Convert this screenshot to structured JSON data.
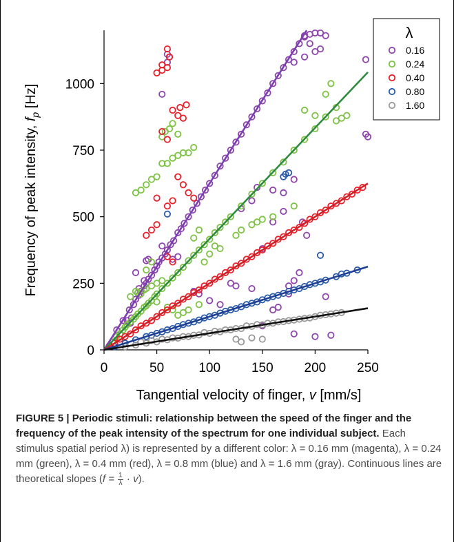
{
  "chart_data": {
    "type": "scatter",
    "xlabel": "Tangential velocity of finger, v [mm/s]",
    "xlabel_main": "Tangential velocity of finger, ",
    "xlabel_var": "v",
    "xlabel_unit": " [mm/s]",
    "ylabel_main": "Frequency of peak intensity, ",
    "ylabel_var": "f",
    "ylabel_sub": "p",
    "ylabel_unit": " [Hz]",
    "xlim": [
      0,
      250
    ],
    "ylim": [
      0,
      1200
    ],
    "xticks": [
      0,
      50,
      100,
      150,
      200,
      250
    ],
    "yticks": [
      0,
      250,
      500,
      750,
      1000
    ],
    "grid": false,
    "legend": {
      "title": "λ",
      "placement": "top-right"
    },
    "series": [
      {
        "name": "0.16",
        "color": "#8e44ad",
        "slope": 6.25,
        "line_color": "#7b3fb0",
        "x": [
          12,
          18,
          24,
          28,
          30,
          33,
          35,
          38,
          40,
          42,
          45,
          48,
          50,
          52,
          55,
          58,
          60,
          63,
          66,
          70,
          73,
          76,
          80,
          84,
          88,
          92,
          96,
          100,
          105,
          110,
          115,
          120,
          125,
          130,
          135,
          140,
          145,
          150,
          155,
          160,
          165,
          170,
          175,
          180,
          185,
          190,
          195,
          200,
          205,
          22,
          26,
          40,
          55,
          60,
          60,
          62,
          38,
          33,
          180,
          190,
          200,
          205,
          210,
          130,
          140,
          150,
          160,
          170,
          175,
          180,
          185,
          188,
          192,
          248,
          248,
          250,
          150,
          160,
          165,
          175,
          180,
          200,
          210,
          215,
          190,
          195,
          120,
          125,
          140,
          145,
          160,
          170,
          180,
          25,
          30,
          42,
          48,
          55,
          65,
          70,
          85,
          90,
          100,
          110
        ],
        "y": [
          75,
          110,
          150,
          170,
          190,
          205,
          220,
          240,
          250,
          265,
          280,
          300,
          315,
          330,
          345,
          360,
          375,
          395,
          410,
          440,
          455,
          475,
          500,
          525,
          550,
          575,
          600,
          625,
          655,
          690,
          720,
          750,
          780,
          810,
          845,
          875,
          905,
          935,
          965,
          1000,
          1030,
          1060,
          1090,
          1120,
          1150,
          1175,
          1185,
          1190,
          1190,
          110,
          120,
          335,
          960,
          1080,
          1110,
          1100,
          260,
          230,
          1080,
          1100,
          1120,
          1130,
          1180,
          530,
          560,
          380,
          480,
          520,
          240,
          260,
          290,
          480,
          430,
          810,
          1090,
          800,
          90,
          150,
          160,
          210,
          60,
          50,
          200,
          55,
          1180,
          1150,
          250,
          240,
          230,
          610,
          600,
          590,
          640,
          100,
          290,
          340,
          300,
          390,
          340,
          350,
          220,
          210,
          185,
          170
        ]
      },
      {
        "name": "0.24",
        "color": "#7dc242",
        "slope": 4.17,
        "line_color": "#2e8b3d",
        "x": [
          8,
          12,
          15,
          18,
          20,
          22,
          25,
          28,
          30,
          32,
          35,
          38,
          40,
          42,
          45,
          48,
          50,
          55,
          60,
          65,
          70,
          75,
          80,
          85,
          90,
          95,
          100,
          105,
          110,
          115,
          120,
          130,
          140,
          150,
          160,
          170,
          180,
          190,
          200,
          210,
          220,
          25,
          30,
          32,
          35,
          38,
          40,
          45,
          50,
          55,
          30,
          35,
          40,
          45,
          50,
          55,
          60,
          65,
          70,
          75,
          80,
          85,
          95,
          100,
          105,
          110,
          125,
          130,
          140,
          145,
          150,
          160,
          180,
          190,
          200,
          210,
          215,
          220,
          225,
          230,
          55,
          58,
          62,
          65,
          70,
          85,
          90,
          40,
          45,
          50,
          60,
          65,
          70,
          75,
          80,
          90
        ],
        "y": [
          30,
          50,
          60,
          75,
          85,
          95,
          105,
          115,
          125,
          135,
          145,
          160,
          165,
          175,
          185,
          200,
          210,
          230,
          250,
          270,
          290,
          310,
          335,
          355,
          375,
          395,
          415,
          440,
          460,
          480,
          500,
          540,
          585,
          625,
          665,
          705,
          750,
          790,
          830,
          875,
          910,
          200,
          220,
          215,
          210,
          225,
          230,
          240,
          250,
          260,
          590,
          600,
          620,
          640,
          650,
          700,
          700,
          720,
          730,
          740,
          740,
          760,
          330,
          360,
          390,
          380,
          430,
          450,
          470,
          480,
          490,
          500,
          540,
          900,
          880,
          960,
          1000,
          860,
          870,
          880,
          800,
          820,
          830,
          850,
          810,
          420,
          450,
          300,
          330,
          180,
          160,
          150,
          130,
          140,
          150,
          170
        ]
      },
      {
        "name": "0.40",
        "color": "#e8202a",
        "slope": 2.5,
        "line_color": "#d02028",
        "x": [
          5,
          10,
          15,
          20,
          25,
          30,
          35,
          40,
          45,
          50,
          55,
          60,
          65,
          70,
          75,
          80,
          85,
          90,
          95,
          100,
          105,
          110,
          115,
          120,
          125,
          130,
          135,
          140,
          145,
          150,
          155,
          160,
          165,
          170,
          175,
          180,
          185,
          190,
          195,
          200,
          205,
          210,
          215,
          220,
          225,
          230,
          235,
          240,
          245,
          50,
          55,
          55,
          60,
          60,
          62,
          65,
          70,
          72,
          75,
          78,
          40,
          45,
          50,
          60,
          65,
          50,
          55,
          60,
          70,
          75,
          80,
          85,
          60,
          65
        ],
        "y": [
          15,
          25,
          40,
          50,
          60,
          75,
          90,
          100,
          110,
          125,
          140,
          150,
          165,
          175,
          190,
          200,
          215,
          225,
          240,
          250,
          265,
          275,
          290,
          300,
          315,
          325,
          340,
          350,
          365,
          375,
          390,
          400,
          415,
          425,
          440,
          450,
          460,
          475,
          490,
          500,
          515,
          525,
          540,
          550,
          560,
          575,
          585,
          600,
          610,
          1040,
          1050,
          1070,
          1130,
          1060,
          1100,
          900,
          880,
          910,
          870,
          920,
          430,
          450,
          470,
          540,
          560,
          570,
          820,
          790,
          650,
          620,
          590,
          570,
          350,
          330
        ]
      },
      {
        "name": "0.80",
        "color": "#2a5ba8",
        "slope": 1.25,
        "line_color": "#1f3f95",
        "x": [
          10,
          20,
          30,
          40,
          50,
          60,
          70,
          80,
          90,
          100,
          110,
          120,
          130,
          140,
          150,
          160,
          170,
          180,
          190,
          200,
          210,
          220,
          230,
          240,
          45,
          55,
          65,
          75,
          85,
          95,
          105,
          115,
          125,
          135,
          145,
          155,
          165,
          175,
          185,
          195,
          205,
          225,
          170,
          172,
          175,
          60,
          205
        ],
        "y": [
          12,
          25,
          38,
          50,
          62,
          75,
          88,
          100,
          112,
          125,
          138,
          150,
          162,
          175,
          188,
          200,
          212,
          225,
          238,
          250,
          262,
          275,
          288,
          300,
          55,
          68,
          80,
          95,
          105,
          120,
          130,
          145,
          155,
          170,
          180,
          195,
          205,
          220,
          230,
          245,
          255,
          285,
          650,
          660,
          665,
          510,
          355
        ]
      },
      {
        "name": "1.60",
        "color": "#999999",
        "slope": 0.625,
        "line_color": "#111111",
        "x": [
          20,
          30,
          40,
          50,
          60,
          70,
          80,
          90,
          100,
          110,
          120,
          130,
          140,
          150,
          160,
          170,
          180,
          190,
          200,
          210,
          220,
          35,
          45,
          55,
          65,
          75,
          85,
          95,
          105,
          115,
          125,
          135,
          145,
          155,
          165,
          175,
          185,
          195,
          205,
          215,
          225,
          125,
          130,
          140,
          150
        ],
        "y": [
          12,
          18,
          25,
          30,
          38,
          44,
          50,
          56,
          62,
          68,
          75,
          80,
          88,
          94,
          100,
          106,
          112,
          118,
          125,
          132,
          138,
          30,
          35,
          40,
          45,
          50,
          55,
          65,
          70,
          75,
          80,
          90,
          95,
          100,
          105,
          110,
          115,
          120,
          130,
          135,
          140,
          40,
          30,
          45,
          40
        ]
      }
    ]
  },
  "legend": {
    "title": "λ",
    "entries": [
      "0.16",
      "0.24",
      "0.40",
      "0.80",
      "1.60"
    ]
  },
  "caption": {
    "title": "FIGURE 5 | Periodic stimuli: relationship between the speed of the finger and the frequency of the peak intensity of the spectrum for one individual subject.",
    "body_1": " Each stimulus spatial period λ) is represented by a different color: λ = 0.16 mm (magenta), λ = 0.24 mm (green), λ = 0.4 mm (red), λ = 0.8 mm (blue) and λ = 1.6 mm (gray). Continuous lines are theoretical slopes (",
    "formula_lhs": "f = ",
    "frac_num": "1",
    "frac_den": "λ",
    "formula_rhs": " · v",
    "body_2": ")."
  }
}
